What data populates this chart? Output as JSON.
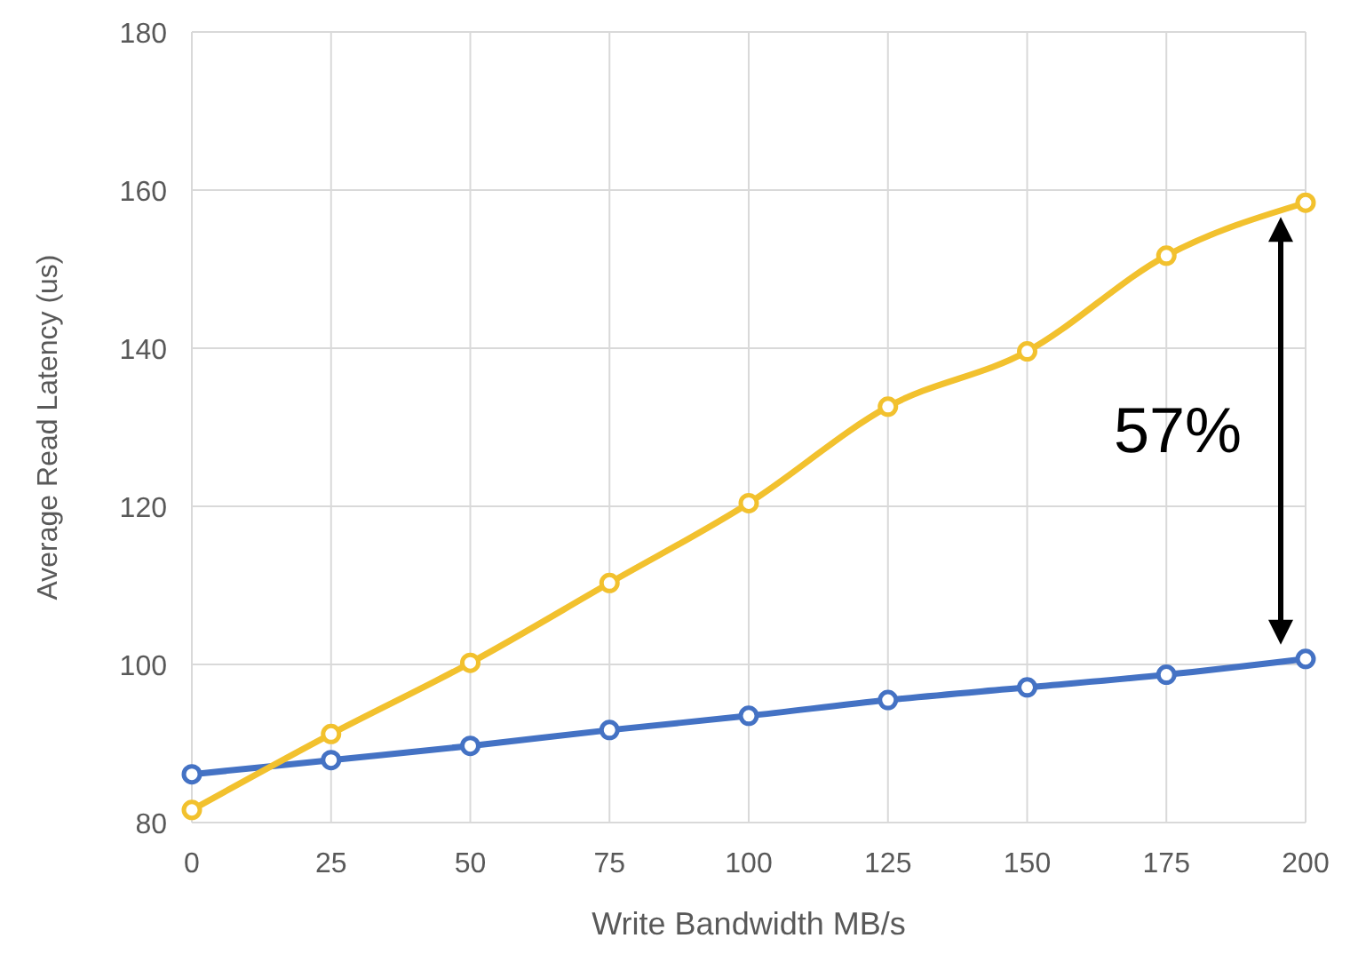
{
  "chart_data": {
    "type": "line",
    "xlabel": "Write Bandwidth MB/s",
    "ylabel": "Average Read Latency (us)",
    "x": [
      0,
      25,
      50,
      75,
      100,
      125,
      150,
      175,
      200
    ],
    "series": [
      {
        "color": "#4472c4",
        "values": [
          86.1,
          87.9,
          89.7,
          91.7,
          93.5,
          95.5,
          97.1,
          98.7,
          100.7
        ]
      },
      {
        "color": "#f2c12e",
        "values": [
          81.6,
          91.2,
          100.2,
          110.3,
          120.4,
          132.6,
          139.6,
          151.7,
          158.4
        ]
      }
    ],
    "xlim": [
      0,
      200
    ],
    "xticks": [
      0,
      25,
      50,
      75,
      100,
      125,
      150,
      175,
      200
    ],
    "ylim": [
      80,
      180
    ],
    "yticks": [
      80,
      100,
      120,
      140,
      160,
      180
    ],
    "grid": true,
    "marker": "circle",
    "line_style": "solid",
    "annotations": [
      "57%"
    ]
  }
}
